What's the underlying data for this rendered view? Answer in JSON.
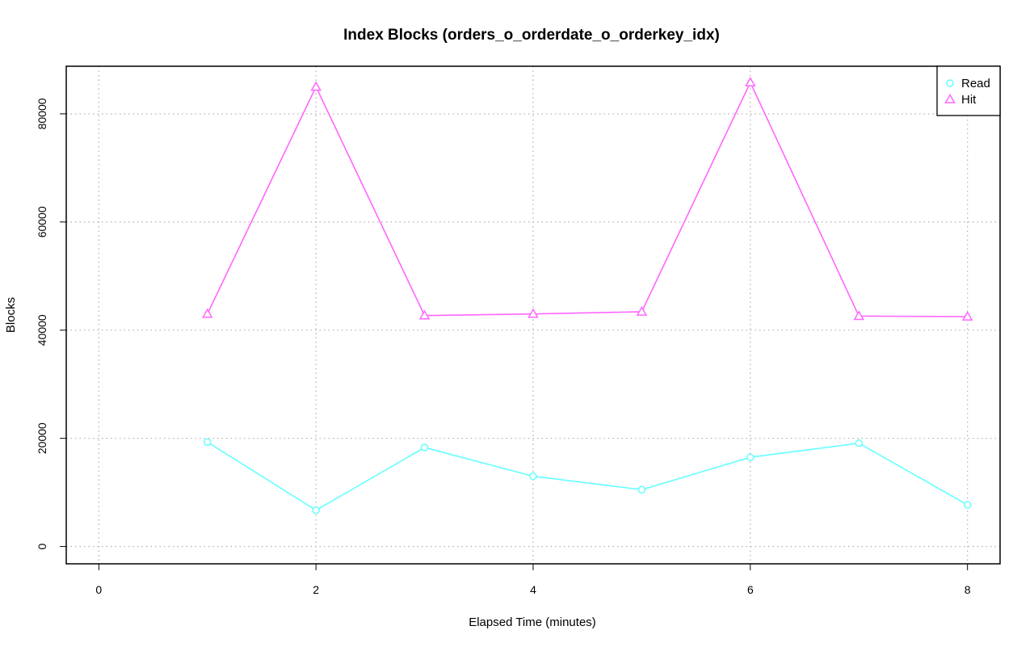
{
  "chart_data": {
    "type": "line",
    "title": "Index Blocks (orders_o_orderdate_o_orderkey_idx)",
    "xlabel": "Elapsed Time (minutes)",
    "ylabel": "Blocks",
    "xlim": [
      -0.3,
      8.3
    ],
    "ylim": [
      -3200,
      88800
    ],
    "x_ticks": [
      0,
      2,
      4,
      6,
      8
    ],
    "x_tick_labels": [
      "0",
      "2",
      "4",
      "6",
      "8"
    ],
    "y_ticks": [
      0,
      20000,
      40000,
      60000,
      80000
    ],
    "y_tick_labels": [
      "0",
      "20000",
      "40000",
      "60000",
      "80000"
    ],
    "grid": true,
    "legend_position": "top-right",
    "series": [
      {
        "name": "Read",
        "color": "#66ffff",
        "marker": "circle",
        "x": [
          1,
          2,
          3,
          4,
          5,
          6,
          7,
          8
        ],
        "values": [
          19300,
          6700,
          18300,
          13000,
          10500,
          16500,
          19100,
          7700
        ]
      },
      {
        "name": "Hit",
        "color": "#ff66ff",
        "marker": "triangle",
        "x": [
          1,
          2,
          3,
          4,
          5,
          6,
          7,
          8
        ],
        "values": [
          43000,
          85000,
          42700,
          43000,
          43400,
          85800,
          42600,
          42500
        ]
      }
    ]
  }
}
